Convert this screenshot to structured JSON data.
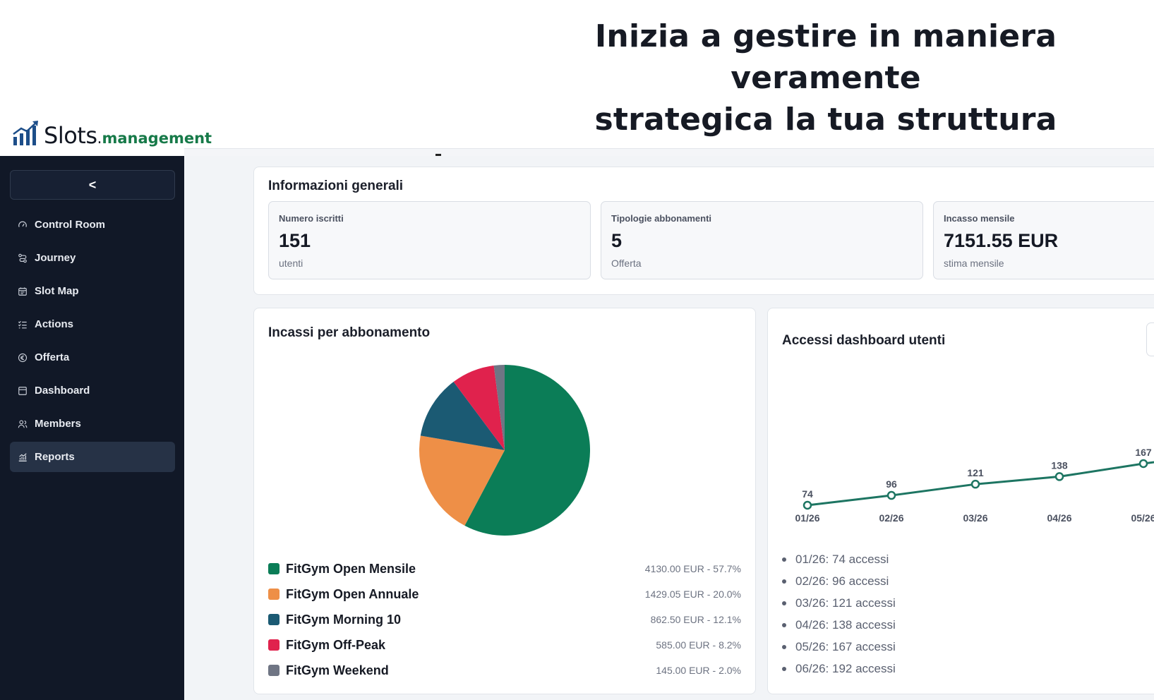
{
  "hero": {
    "line1": "Inizia a gestire in maniera veramente",
    "line2": "strategica la tua struttura"
  },
  "brand": {
    "name": "Slots",
    "dot": ".",
    "suffix": "management",
    "accent_color": "#177a49"
  },
  "sidebar": {
    "collapse_label": "<",
    "items": [
      {
        "label": "Control Room",
        "icon": "gauge-icon",
        "active": false
      },
      {
        "label": "Journey",
        "icon": "route-icon",
        "active": false
      },
      {
        "label": "Slot Map",
        "icon": "calendar-icon",
        "active": false
      },
      {
        "label": "Actions",
        "icon": "checklist-icon",
        "active": false
      },
      {
        "label": "Offerta",
        "icon": "euro-icon",
        "active": false
      },
      {
        "label": "Dashboard",
        "icon": "panel-icon",
        "active": false
      },
      {
        "label": "Members",
        "icon": "users-icon",
        "active": false
      },
      {
        "label": "Reports",
        "icon": "chart-icon",
        "active": true
      }
    ]
  },
  "info": {
    "title": "Informazioni generali",
    "stats": [
      {
        "label": "Numero iscritti",
        "value": "151",
        "sub": "utenti"
      },
      {
        "label": "Tipologie abbonamenti",
        "value": "5",
        "sub": "Offerta"
      },
      {
        "label": "Incasso mensile",
        "value": "7151.55 EUR",
        "sub": "stima mensile"
      }
    ]
  },
  "pie_card": {
    "title": "Incassi per abbonamento",
    "legend": [
      {
        "name": "FitGym Open Mensile",
        "value": "4130.00 EUR - 57.7%"
      },
      {
        "name": "FitGym Open Annuale",
        "value": "1429.05 EUR - 20.0%"
      },
      {
        "name": "FitGym Morning 10",
        "value": "862.50 EUR - 12.1%"
      },
      {
        "name": "FitGym Off-Peak",
        "value": "585.00 EUR - 8.2%"
      },
      {
        "name": "FitGym Weekend",
        "value": "145.00 EUR - 2.0%"
      }
    ]
  },
  "line_card": {
    "title": "Accessi dashboard utenti",
    "list": [
      "01/26: 74 accessi",
      "02/26: 96 accessi",
      "03/26: 121 accessi",
      "04/26: 138 accessi",
      "05/26: 167 accessi",
      "06/26: 192 accessi"
    ]
  },
  "chart_data": [
    {
      "type": "pie",
      "categories": [
        "FitGym Open Mensile",
        "FitGym Open Annuale",
        "FitGym Morning 10",
        "FitGym Off-Peak",
        "FitGym Weekend"
      ],
      "values": [
        4130.0,
        1429.05,
        862.5,
        585.0,
        145.0
      ],
      "colors": [
        "#0b7d57",
        "#ee8f47",
        "#1b5a73",
        "#e0224d",
        "#6f7584"
      ]
    },
    {
      "type": "line",
      "categories": [
        "01/26",
        "02/26",
        "03/26",
        "04/26",
        "05/26",
        "06/26"
      ],
      "values": [
        74,
        96,
        121,
        138,
        167,
        192
      ],
      "color": "#1d7562"
    }
  ]
}
